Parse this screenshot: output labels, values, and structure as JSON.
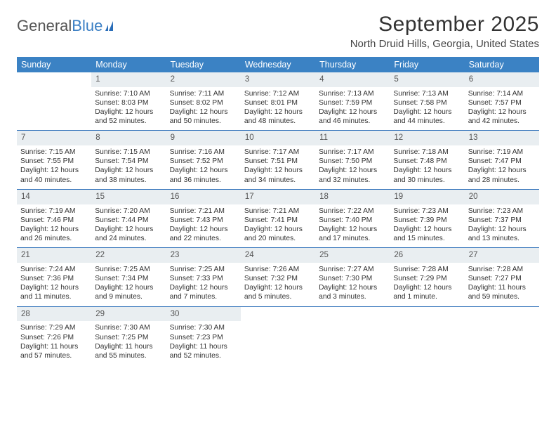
{
  "logo": {
    "text1": "General",
    "text2": "Blue"
  },
  "title": "September 2025",
  "location": "North Druid Hills, Georgia, United States",
  "weekdays": [
    "Sunday",
    "Monday",
    "Tuesday",
    "Wednesday",
    "Thursday",
    "Friday",
    "Saturday"
  ],
  "colors": {
    "header_bg": "#3b82c4",
    "daynum_bg": "#e9eef1",
    "row_border": "#2a6db8"
  },
  "weeks": [
    {
      "nums": [
        "",
        "1",
        "2",
        "3",
        "4",
        "5",
        "6"
      ],
      "cells": [
        [],
        [
          "Sunrise: 7:10 AM",
          "Sunset: 8:03 PM",
          "Daylight: 12 hours",
          "and 52 minutes."
        ],
        [
          "Sunrise: 7:11 AM",
          "Sunset: 8:02 PM",
          "Daylight: 12 hours",
          "and 50 minutes."
        ],
        [
          "Sunrise: 7:12 AM",
          "Sunset: 8:01 PM",
          "Daylight: 12 hours",
          "and 48 minutes."
        ],
        [
          "Sunrise: 7:13 AM",
          "Sunset: 7:59 PM",
          "Daylight: 12 hours",
          "and 46 minutes."
        ],
        [
          "Sunrise: 7:13 AM",
          "Sunset: 7:58 PM",
          "Daylight: 12 hours",
          "and 44 minutes."
        ],
        [
          "Sunrise: 7:14 AM",
          "Sunset: 7:57 PM",
          "Daylight: 12 hours",
          "and 42 minutes."
        ]
      ]
    },
    {
      "nums": [
        "7",
        "8",
        "9",
        "10",
        "11",
        "12",
        "13"
      ],
      "cells": [
        [
          "Sunrise: 7:15 AM",
          "Sunset: 7:55 PM",
          "Daylight: 12 hours",
          "and 40 minutes."
        ],
        [
          "Sunrise: 7:15 AM",
          "Sunset: 7:54 PM",
          "Daylight: 12 hours",
          "and 38 minutes."
        ],
        [
          "Sunrise: 7:16 AM",
          "Sunset: 7:52 PM",
          "Daylight: 12 hours",
          "and 36 minutes."
        ],
        [
          "Sunrise: 7:17 AM",
          "Sunset: 7:51 PM",
          "Daylight: 12 hours",
          "and 34 minutes."
        ],
        [
          "Sunrise: 7:17 AM",
          "Sunset: 7:50 PM",
          "Daylight: 12 hours",
          "and 32 minutes."
        ],
        [
          "Sunrise: 7:18 AM",
          "Sunset: 7:48 PM",
          "Daylight: 12 hours",
          "and 30 minutes."
        ],
        [
          "Sunrise: 7:19 AM",
          "Sunset: 7:47 PM",
          "Daylight: 12 hours",
          "and 28 minutes."
        ]
      ]
    },
    {
      "nums": [
        "14",
        "15",
        "16",
        "17",
        "18",
        "19",
        "20"
      ],
      "cells": [
        [
          "Sunrise: 7:19 AM",
          "Sunset: 7:46 PM",
          "Daylight: 12 hours",
          "and 26 minutes."
        ],
        [
          "Sunrise: 7:20 AM",
          "Sunset: 7:44 PM",
          "Daylight: 12 hours",
          "and 24 minutes."
        ],
        [
          "Sunrise: 7:21 AM",
          "Sunset: 7:43 PM",
          "Daylight: 12 hours",
          "and 22 minutes."
        ],
        [
          "Sunrise: 7:21 AM",
          "Sunset: 7:41 PM",
          "Daylight: 12 hours",
          "and 20 minutes."
        ],
        [
          "Sunrise: 7:22 AM",
          "Sunset: 7:40 PM",
          "Daylight: 12 hours",
          "and 17 minutes."
        ],
        [
          "Sunrise: 7:23 AM",
          "Sunset: 7:39 PM",
          "Daylight: 12 hours",
          "and 15 minutes."
        ],
        [
          "Sunrise: 7:23 AM",
          "Sunset: 7:37 PM",
          "Daylight: 12 hours",
          "and 13 minutes."
        ]
      ]
    },
    {
      "nums": [
        "21",
        "22",
        "23",
        "24",
        "25",
        "26",
        "27"
      ],
      "cells": [
        [
          "Sunrise: 7:24 AM",
          "Sunset: 7:36 PM",
          "Daylight: 12 hours",
          "and 11 minutes."
        ],
        [
          "Sunrise: 7:25 AM",
          "Sunset: 7:34 PM",
          "Daylight: 12 hours",
          "and 9 minutes."
        ],
        [
          "Sunrise: 7:25 AM",
          "Sunset: 7:33 PM",
          "Daylight: 12 hours",
          "and 7 minutes."
        ],
        [
          "Sunrise: 7:26 AM",
          "Sunset: 7:32 PM",
          "Daylight: 12 hours",
          "and 5 minutes."
        ],
        [
          "Sunrise: 7:27 AM",
          "Sunset: 7:30 PM",
          "Daylight: 12 hours",
          "and 3 minutes."
        ],
        [
          "Sunrise: 7:28 AM",
          "Sunset: 7:29 PM",
          "Daylight: 12 hours",
          "and 1 minute."
        ],
        [
          "Sunrise: 7:28 AM",
          "Sunset: 7:27 PM",
          "Daylight: 11 hours",
          "and 59 minutes."
        ]
      ]
    },
    {
      "nums": [
        "28",
        "29",
        "30",
        "",
        "",
        "",
        ""
      ],
      "cells": [
        [
          "Sunrise: 7:29 AM",
          "Sunset: 7:26 PM",
          "Daylight: 11 hours",
          "and 57 minutes."
        ],
        [
          "Sunrise: 7:30 AM",
          "Sunset: 7:25 PM",
          "Daylight: 11 hours",
          "and 55 minutes."
        ],
        [
          "Sunrise: 7:30 AM",
          "Sunset: 7:23 PM",
          "Daylight: 11 hours",
          "and 52 minutes."
        ],
        [],
        [],
        [],
        []
      ]
    }
  ]
}
